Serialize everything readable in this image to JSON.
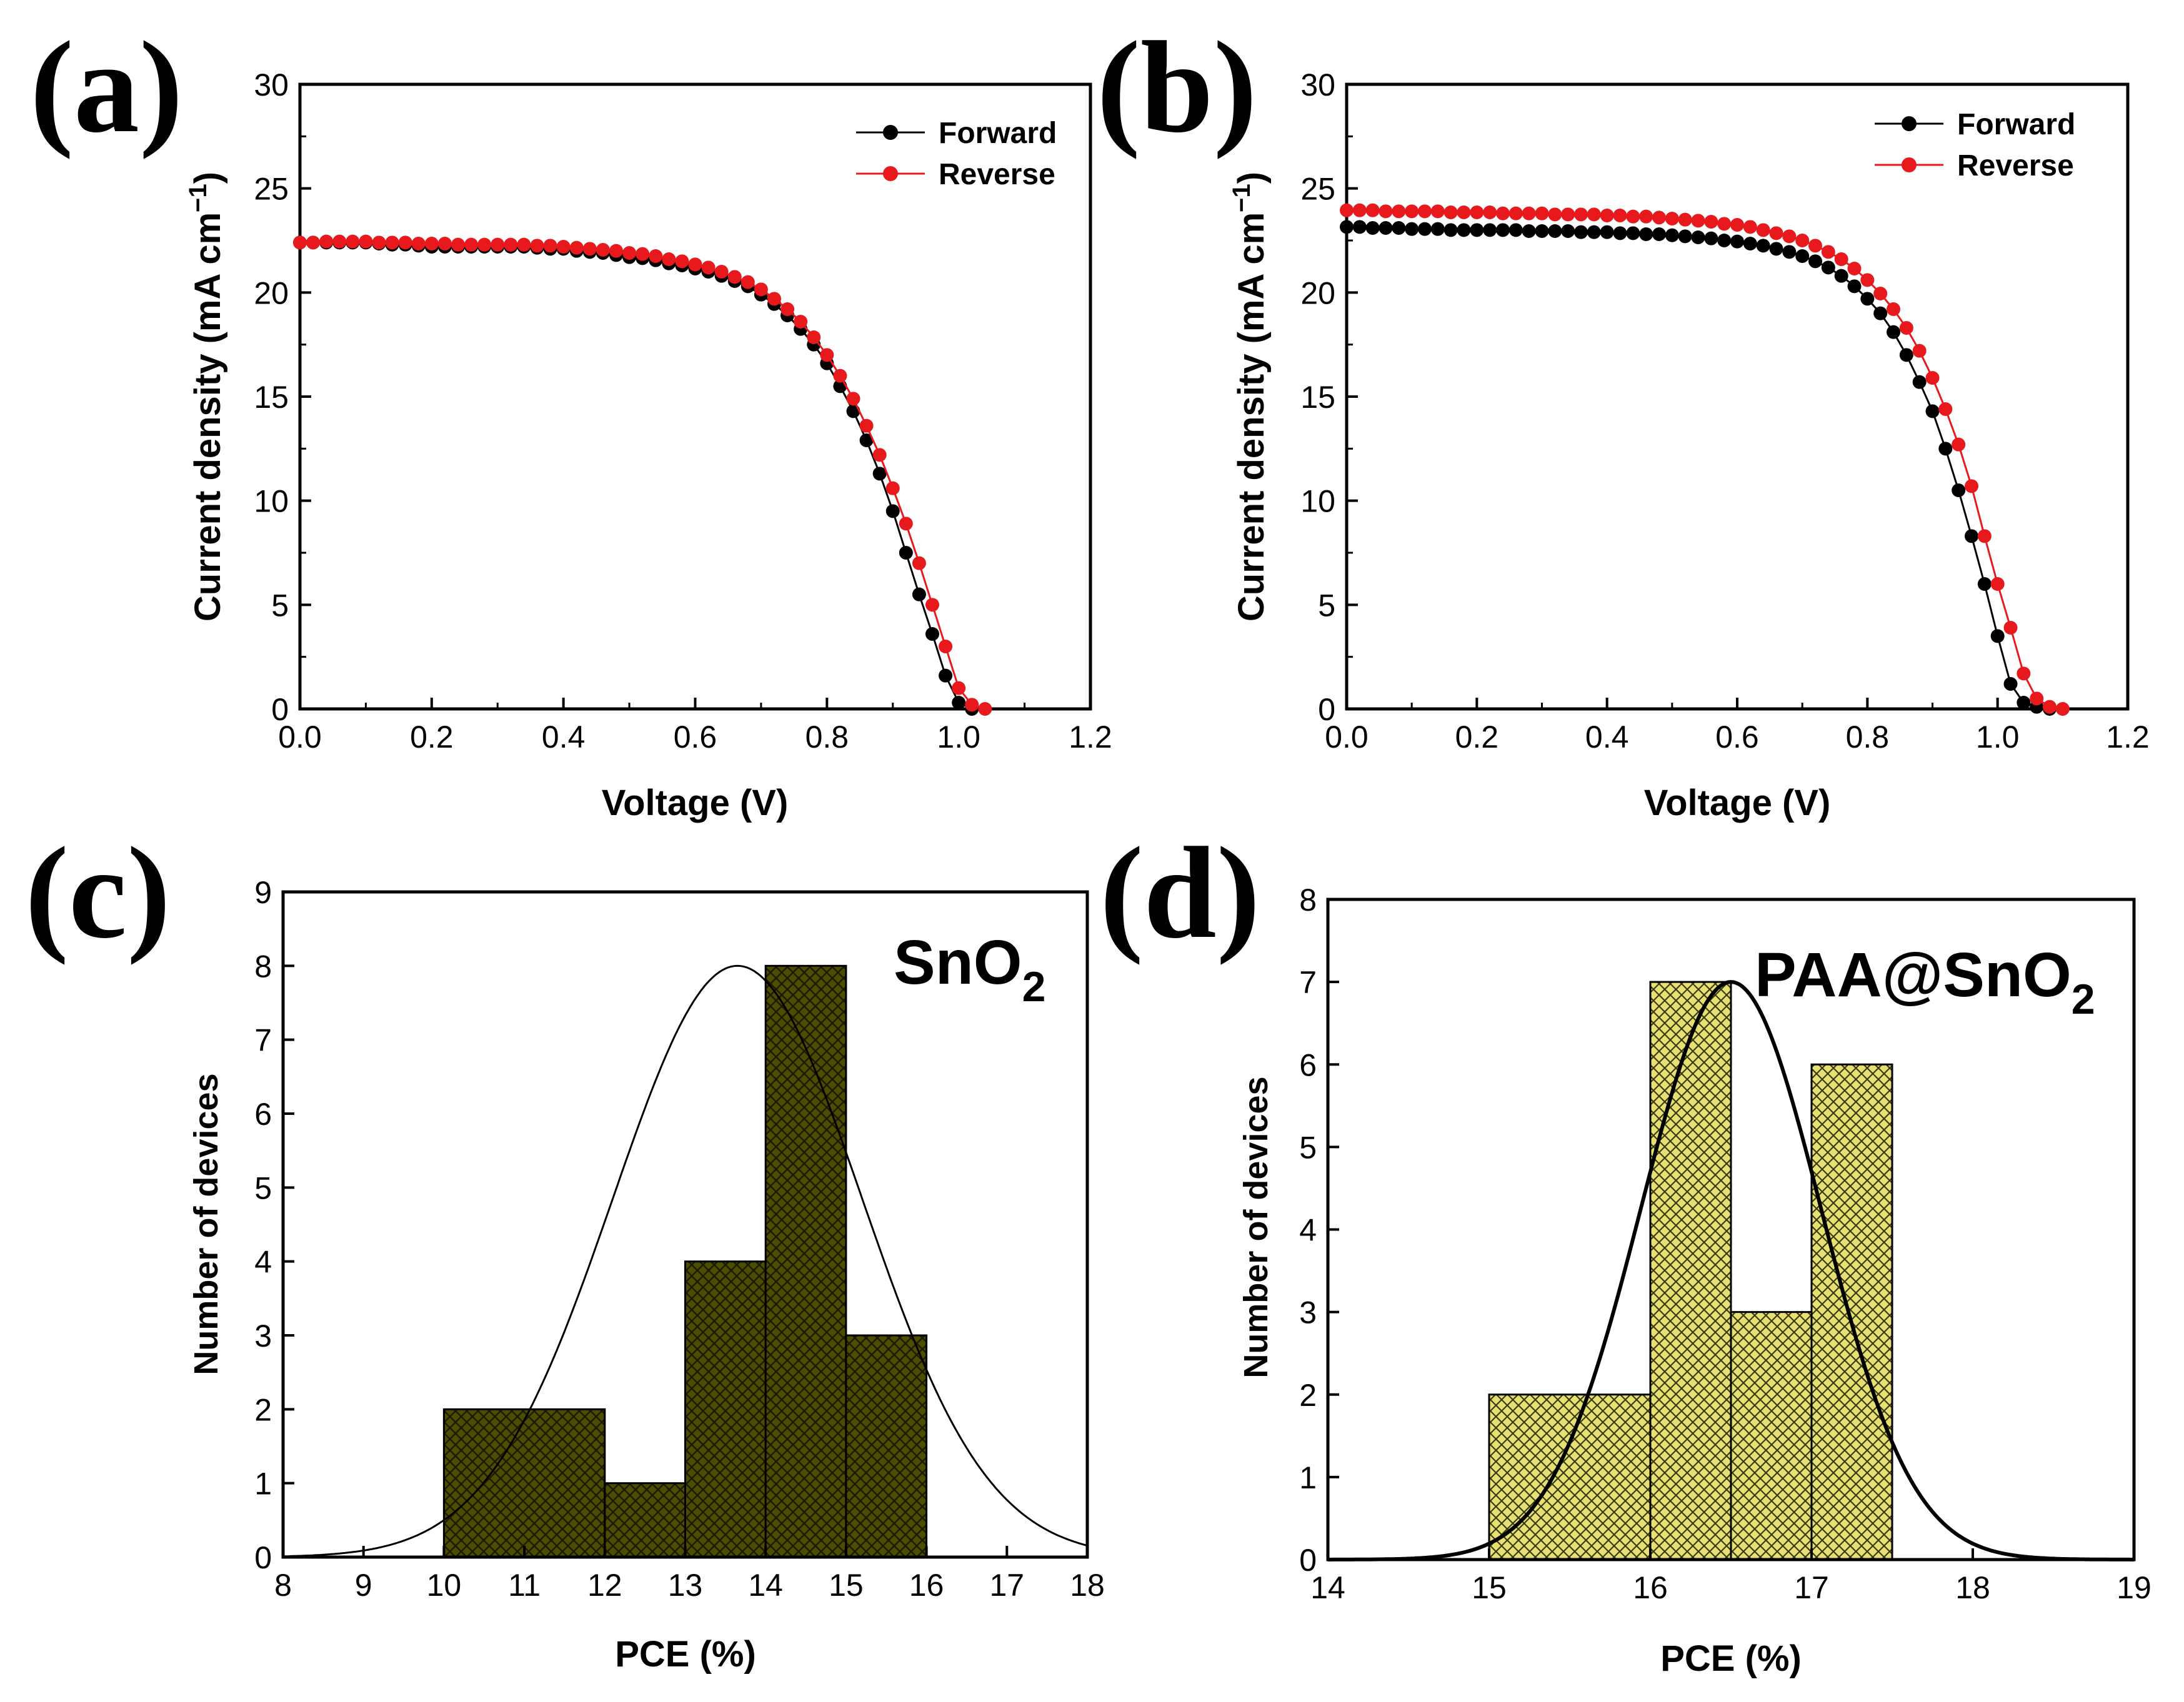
{
  "chart_data": [
    {
      "panel_label": "(a)",
      "type": "line",
      "xlabel": "Voltage (V)",
      "ylabel": "Current density (mA cm",
      "ylabel_sup": "−1",
      "ylabel_close": ")",
      "xlim": [
        0.0,
        1.2
      ],
      "ylim": [
        0,
        30
      ],
      "xticks": [
        "0.0",
        "0.2",
        "0.4",
        "0.6",
        "0.8",
        "1.0",
        "1.2"
      ],
      "yticks": [
        "0",
        "5",
        "10",
        "15",
        "20",
        "25",
        "30"
      ],
      "legend": "top-right",
      "series": [
        {
          "name": "Forward",
          "color": "#000000",
          "x": [
            0.0,
            0.02,
            0.04,
            0.06,
            0.08,
            0.1,
            0.12,
            0.14,
            0.16,
            0.18,
            0.2,
            0.22,
            0.24,
            0.26,
            0.28,
            0.3,
            0.32,
            0.34,
            0.36,
            0.38,
            0.4,
            0.42,
            0.44,
            0.46,
            0.48,
            0.5,
            0.52,
            0.54,
            0.56,
            0.58,
            0.6,
            0.62,
            0.64,
            0.66,
            0.68,
            0.7,
            0.72,
            0.74,
            0.76,
            0.78,
            0.8,
            0.82,
            0.84,
            0.86,
            0.88,
            0.9,
            0.92,
            0.94,
            0.96,
            0.98,
            1.0,
            1.02
          ],
          "y": [
            22.4,
            22.4,
            22.4,
            22.4,
            22.4,
            22.4,
            22.35,
            22.3,
            22.3,
            22.25,
            22.2,
            22.2,
            22.2,
            22.2,
            22.2,
            22.2,
            22.2,
            22.2,
            22.15,
            22.1,
            22.1,
            22.0,
            21.95,
            21.9,
            21.8,
            21.7,
            21.65,
            21.55,
            21.4,
            21.3,
            21.15,
            21.0,
            20.8,
            20.55,
            20.3,
            19.9,
            19.45,
            18.9,
            18.25,
            17.5,
            16.6,
            15.5,
            14.3,
            12.9,
            11.3,
            9.5,
            7.5,
            5.5,
            3.6,
            1.6,
            0.3,
            0.0
          ]
        },
        {
          "name": "Reverse",
          "color": "#e8191c",
          "x": [
            0.0,
            0.02,
            0.04,
            0.06,
            0.08,
            0.1,
            0.12,
            0.14,
            0.16,
            0.18,
            0.2,
            0.22,
            0.24,
            0.26,
            0.28,
            0.3,
            0.32,
            0.34,
            0.36,
            0.38,
            0.4,
            0.42,
            0.44,
            0.46,
            0.48,
            0.5,
            0.52,
            0.54,
            0.56,
            0.58,
            0.6,
            0.62,
            0.64,
            0.66,
            0.68,
            0.7,
            0.72,
            0.74,
            0.76,
            0.78,
            0.8,
            0.82,
            0.84,
            0.86,
            0.88,
            0.9,
            0.92,
            0.94,
            0.96,
            0.98,
            1.0,
            1.02,
            1.04
          ],
          "y": [
            22.4,
            22.4,
            22.45,
            22.45,
            22.45,
            22.45,
            22.4,
            22.4,
            22.4,
            22.35,
            22.35,
            22.35,
            22.3,
            22.3,
            22.3,
            22.3,
            22.3,
            22.3,
            22.25,
            22.25,
            22.2,
            22.15,
            22.1,
            22.05,
            22.0,
            21.9,
            21.85,
            21.75,
            21.6,
            21.5,
            21.35,
            21.2,
            21.0,
            20.75,
            20.5,
            20.15,
            19.7,
            19.2,
            18.6,
            17.85,
            17.0,
            16.0,
            14.9,
            13.6,
            12.2,
            10.6,
            8.9,
            7.0,
            5.0,
            3.0,
            1.0,
            0.2,
            0.0
          ]
        }
      ]
    },
    {
      "panel_label": "(b)",
      "type": "line",
      "xlabel": "Voltage (V)",
      "ylabel": "Current density (mA cm",
      "ylabel_sup": "−1",
      "ylabel_close": ")",
      "xlim": [
        0.0,
        1.2
      ],
      "ylim": [
        0,
        30
      ],
      "xticks": [
        "0.0",
        "0.2",
        "0.4",
        "0.6",
        "0.8",
        "1.0",
        "1.2"
      ],
      "yticks": [
        "0",
        "5",
        "10",
        "15",
        "20",
        "25",
        "30"
      ],
      "legend": "top-right",
      "series": [
        {
          "name": "Forward",
          "color": "#000000",
          "x": [
            0.0,
            0.02,
            0.04,
            0.06,
            0.08,
            0.1,
            0.12,
            0.14,
            0.16,
            0.18,
            0.2,
            0.22,
            0.24,
            0.26,
            0.28,
            0.3,
            0.32,
            0.34,
            0.36,
            0.38,
            0.4,
            0.42,
            0.44,
            0.46,
            0.48,
            0.5,
            0.52,
            0.54,
            0.56,
            0.58,
            0.6,
            0.62,
            0.64,
            0.66,
            0.68,
            0.7,
            0.72,
            0.74,
            0.76,
            0.78,
            0.8,
            0.82,
            0.84,
            0.86,
            0.88,
            0.9,
            0.92,
            0.94,
            0.96,
            0.98,
            1.0,
            1.02,
            1.04,
            1.06,
            1.08
          ],
          "y": [
            23.15,
            23.15,
            23.1,
            23.1,
            23.1,
            23.05,
            23.05,
            23.05,
            23.0,
            23.0,
            23.0,
            23.0,
            23.0,
            23.0,
            22.95,
            22.95,
            22.95,
            22.95,
            22.9,
            22.9,
            22.9,
            22.85,
            22.85,
            22.8,
            22.8,
            22.75,
            22.7,
            22.65,
            22.6,
            22.5,
            22.45,
            22.35,
            22.25,
            22.1,
            21.95,
            21.75,
            21.5,
            21.2,
            20.8,
            20.3,
            19.7,
            19.0,
            18.1,
            17.0,
            15.7,
            14.3,
            12.5,
            10.5,
            8.3,
            6.0,
            3.5,
            1.2,
            0.3,
            0.1,
            0.0
          ]
        },
        {
          "name": "Reverse",
          "color": "#e8191c",
          "x": [
            0.0,
            0.02,
            0.04,
            0.06,
            0.08,
            0.1,
            0.12,
            0.14,
            0.16,
            0.18,
            0.2,
            0.22,
            0.24,
            0.26,
            0.28,
            0.3,
            0.32,
            0.34,
            0.36,
            0.38,
            0.4,
            0.42,
            0.44,
            0.46,
            0.48,
            0.5,
            0.52,
            0.54,
            0.56,
            0.58,
            0.6,
            0.62,
            0.64,
            0.66,
            0.68,
            0.7,
            0.72,
            0.74,
            0.76,
            0.78,
            0.8,
            0.82,
            0.84,
            0.86,
            0.88,
            0.9,
            0.92,
            0.94,
            0.96,
            0.98,
            1.0,
            1.02,
            1.04,
            1.06,
            1.08,
            1.1
          ],
          "y": [
            23.95,
            23.95,
            23.95,
            23.9,
            23.9,
            23.9,
            23.9,
            23.9,
            23.85,
            23.85,
            23.85,
            23.85,
            23.8,
            23.8,
            23.8,
            23.8,
            23.75,
            23.75,
            23.75,
            23.75,
            23.7,
            23.7,
            23.65,
            23.65,
            23.6,
            23.55,
            23.5,
            23.45,
            23.4,
            23.3,
            23.25,
            23.15,
            23.0,
            22.85,
            22.7,
            22.5,
            22.25,
            21.95,
            21.6,
            21.15,
            20.6,
            19.95,
            19.2,
            18.3,
            17.2,
            15.9,
            14.4,
            12.7,
            10.7,
            8.3,
            6.0,
            3.9,
            1.7,
            0.5,
            0.1,
            0.0
          ]
        }
      ]
    },
    {
      "panel_label": "(c)",
      "type": "bar",
      "histogram": true,
      "annotation": "SnO",
      "annotation_sub": "2",
      "xlabel": "PCE (%)",
      "ylabel": "Number of devices",
      "xlim": [
        8,
        18
      ],
      "ylim": [
        0,
        9
      ],
      "xticks": [
        "8",
        "9",
        "10",
        "11",
        "12",
        "13",
        "14",
        "15",
        "16",
        "17",
        "18"
      ],
      "yticks": [
        "0",
        "1",
        "2",
        "3",
        "4",
        "5",
        "6",
        "7",
        "8",
        "9"
      ],
      "bar_color": "#4d4d00",
      "bins": [
        [
          10,
          12
        ],
        [
          12,
          13
        ],
        [
          13,
          14
        ],
        [
          14,
          15
        ],
        [
          15,
          16
        ]
      ],
      "values": [
        2,
        1,
        4,
        8,
        3
      ],
      "fit": {
        "type": "gaussian",
        "mean": 13.65,
        "sigma": 1.55,
        "peak": 8.0
      }
    },
    {
      "panel_label": "(d)",
      "type": "bar",
      "histogram": true,
      "annotation": "PAA@SnO",
      "annotation_sub": "2",
      "xlabel": "PCE (%)",
      "ylabel": "Number of devices",
      "xlim": [
        14,
        19
      ],
      "ylim": [
        0,
        8
      ],
      "xticks": [
        "14",
        "15",
        "16",
        "17",
        "18",
        "19"
      ],
      "yticks": [
        "0",
        "1",
        "2",
        "3",
        "4",
        "5",
        "6",
        "7",
        "8"
      ],
      "bar_color": "#e6e072",
      "bins": [
        [
          15,
          16
        ],
        [
          16,
          16.5
        ],
        [
          16.5,
          17
        ],
        [
          17,
          17.5
        ]
      ],
      "values": [
        2,
        7,
        3,
        6
      ],
      "fit": {
        "type": "gaussian",
        "mean": 16.5,
        "sigma": 0.56,
        "peak": 7.0
      }
    }
  ]
}
